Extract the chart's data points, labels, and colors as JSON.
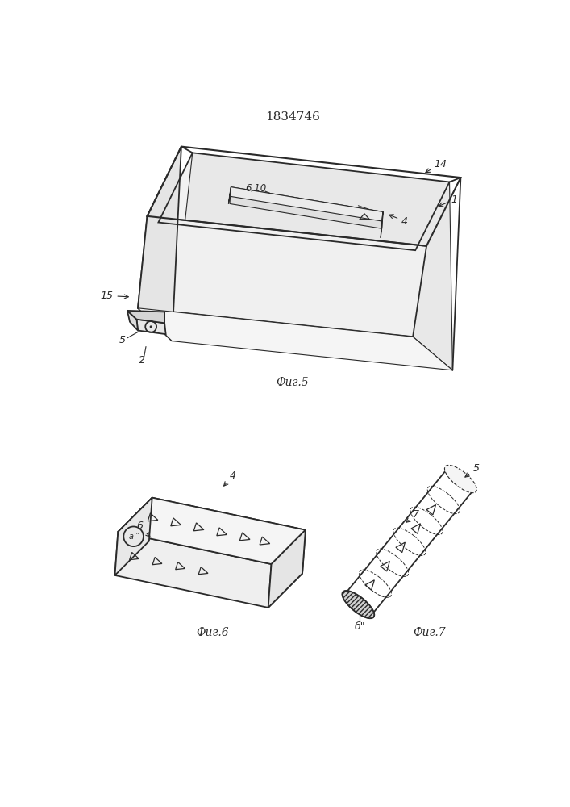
{
  "title": "1834746",
  "bg_color": "#ffffff",
  "line_color": "#2a2a2a",
  "fig5_caption": "Фиг.5",
  "fig6_caption": "Фиг.6",
  "fig7_caption": "Фиг.7",
  "label_fontsize": 9,
  "caption_fontsize": 10
}
